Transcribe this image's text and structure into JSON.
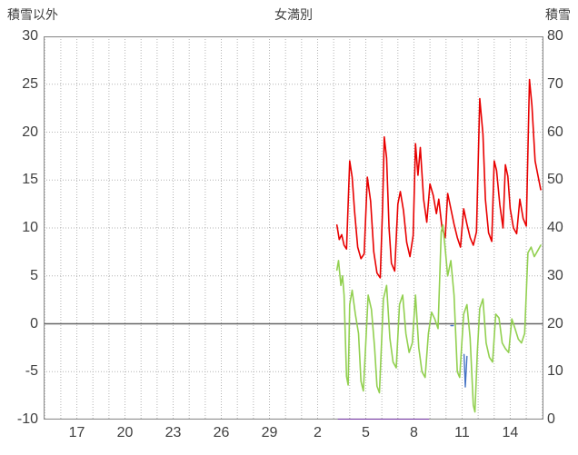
{
  "chart_data": {
    "type": "line",
    "title": "女満別",
    "grid": true,
    "legend": "none",
    "colors": {
      "grid": "#b3b3b3",
      "zero_line": "#666666",
      "border": "#8c8c8c",
      "text": "#3f3f3f",
      "red": "#e80000",
      "green": "#92d050",
      "blue": "#4472c4",
      "purple": "#7030a0"
    },
    "left_axis": {
      "label": "積雪以外",
      "min": -10,
      "max": 30,
      "ticks": [
        30,
        25,
        20,
        15,
        10,
        5,
        0,
        -5,
        -10
      ]
    },
    "right_axis": {
      "label": "積雪",
      "min": 0,
      "max": 80,
      "ticks": [
        80,
        70,
        60,
        50,
        40,
        30,
        20,
        10,
        0
      ]
    },
    "x_axis": {
      "domain": [
        14.93,
        46.07
      ],
      "minor_step": 1,
      "ticks": [
        {
          "label": "17",
          "pos": 17
        },
        {
          "label": "20",
          "pos": 20
        },
        {
          "label": "23",
          "pos": 23
        },
        {
          "label": "26",
          "pos": 26
        },
        {
          "label": "29",
          "pos": 29
        },
        {
          "label": "2",
          "pos": 32
        },
        {
          "label": "5",
          "pos": 35
        },
        {
          "label": "8",
          "pos": 38
        },
        {
          "label": "11",
          "pos": 41
        },
        {
          "label": "14",
          "pos": 44
        }
      ]
    },
    "series": [
      {
        "name": "series-red",
        "axis": "left",
        "color": "#e80000",
        "width": 1.6,
        "points": [
          [
            33.2,
            10.3
          ],
          [
            33.35,
            8.8
          ],
          [
            33.5,
            9.3
          ],
          [
            33.65,
            8.2
          ],
          [
            33.8,
            7.8
          ],
          [
            34.0,
            17.0
          ],
          [
            34.15,
            15.3
          ],
          [
            34.3,
            11.8
          ],
          [
            34.5,
            8.0
          ],
          [
            34.7,
            6.8
          ],
          [
            34.9,
            7.3
          ],
          [
            35.1,
            15.3
          ],
          [
            35.3,
            12.8
          ],
          [
            35.5,
            7.5
          ],
          [
            35.7,
            5.3
          ],
          [
            35.9,
            4.8
          ],
          [
            36.05,
            12.2
          ],
          [
            36.15,
            19.5
          ],
          [
            36.3,
            17.3
          ],
          [
            36.45,
            10.0
          ],
          [
            36.6,
            6.3
          ],
          [
            36.8,
            5.5
          ],
          [
            37.0,
            12.5
          ],
          [
            37.15,
            13.8
          ],
          [
            37.35,
            11.8
          ],
          [
            37.55,
            8.5
          ],
          [
            37.75,
            7.0
          ],
          [
            37.95,
            9.2
          ],
          [
            38.1,
            18.8
          ],
          [
            38.25,
            15.5
          ],
          [
            38.4,
            18.4
          ],
          [
            38.6,
            13.0
          ],
          [
            38.8,
            10.6
          ],
          [
            39.0,
            14.6
          ],
          [
            39.2,
            13.4
          ],
          [
            39.4,
            11.5
          ],
          [
            39.55,
            13.0
          ],
          [
            39.75,
            10.0
          ],
          [
            39.95,
            9.0
          ],
          [
            40.1,
            13.6
          ],
          [
            40.3,
            12.0
          ],
          [
            40.5,
            10.4
          ],
          [
            40.7,
            9.0
          ],
          [
            40.9,
            8.0
          ],
          [
            41.1,
            12.0
          ],
          [
            41.3,
            10.4
          ],
          [
            41.5,
            9.0
          ],
          [
            41.7,
            8.2
          ],
          [
            41.9,
            9.6
          ],
          [
            42.1,
            23.5
          ],
          [
            42.3,
            19.8
          ],
          [
            42.45,
            13.0
          ],
          [
            42.65,
            9.5
          ],
          [
            42.85,
            8.6
          ],
          [
            43.0,
            17.0
          ],
          [
            43.15,
            16.0
          ],
          [
            43.35,
            12.4
          ],
          [
            43.55,
            10.0
          ],
          [
            43.7,
            16.6
          ],
          [
            43.85,
            15.4
          ],
          [
            44.0,
            12.0
          ],
          [
            44.2,
            10.0
          ],
          [
            44.4,
            9.4
          ],
          [
            44.6,
            13.0
          ],
          [
            44.8,
            11.0
          ],
          [
            45.0,
            10.2
          ],
          [
            45.2,
            25.5
          ],
          [
            45.35,
            22.8
          ],
          [
            45.55,
            17.0
          ],
          [
            45.75,
            15.3
          ],
          [
            45.9,
            14.0
          ]
        ]
      },
      {
        "name": "series-green",
        "axis": "left",
        "color": "#92d050",
        "width": 1.6,
        "points": [
          [
            33.2,
            5.6
          ],
          [
            33.3,
            6.6
          ],
          [
            33.45,
            4.0
          ],
          [
            33.55,
            5.0
          ],
          [
            33.65,
            3.0
          ],
          [
            33.8,
            -5.5
          ],
          [
            33.9,
            -6.4
          ],
          [
            34.0,
            2.0
          ],
          [
            34.15,
            3.5
          ],
          [
            34.35,
            1.0
          ],
          [
            34.55,
            -1.0
          ],
          [
            34.7,
            -6.0
          ],
          [
            34.85,
            -7.0
          ],
          [
            35.0,
            -2.0
          ],
          [
            35.15,
            3.0
          ],
          [
            35.35,
            1.5
          ],
          [
            35.55,
            -2.5
          ],
          [
            35.7,
            -6.5
          ],
          [
            35.85,
            -7.2
          ],
          [
            36.1,
            2.6
          ],
          [
            36.3,
            4.0
          ],
          [
            36.5,
            -1.5
          ],
          [
            36.7,
            -4.0
          ],
          [
            36.9,
            -4.6
          ],
          [
            37.1,
            2.0
          ],
          [
            37.3,
            3.0
          ],
          [
            37.5,
            -1.0
          ],
          [
            37.7,
            -3.0
          ],
          [
            37.9,
            -2.0
          ],
          [
            38.1,
            3.0
          ],
          [
            38.3,
            -2.5
          ],
          [
            38.5,
            -5.0
          ],
          [
            38.7,
            -5.6
          ],
          [
            38.9,
            -1.0
          ],
          [
            39.1,
            1.2
          ],
          [
            39.3,
            0.5
          ],
          [
            39.5,
            -0.5
          ],
          [
            39.7,
            9.6
          ],
          [
            39.8,
            10.3
          ],
          [
            39.95,
            7.8
          ],
          [
            40.1,
            5.0
          ],
          [
            40.3,
            6.6
          ],
          [
            40.5,
            3.0
          ],
          [
            40.7,
            -5.0
          ],
          [
            40.85,
            -5.6
          ],
          [
            41.1,
            1.0
          ],
          [
            41.3,
            2.0
          ],
          [
            41.5,
            -1.5
          ],
          [
            41.7,
            -8.5
          ],
          [
            41.8,
            -9.2
          ],
          [
            41.95,
            -3.0
          ],
          [
            42.1,
            1.6
          ],
          [
            42.3,
            2.6
          ],
          [
            42.5,
            -2.0
          ],
          [
            42.7,
            -3.5
          ],
          [
            42.9,
            -4.0
          ],
          [
            43.1,
            1.0
          ],
          [
            43.3,
            0.6
          ],
          [
            43.5,
            -2.0
          ],
          [
            43.7,
            -2.6
          ],
          [
            43.9,
            -3.0
          ],
          [
            44.1,
            0.5
          ],
          [
            44.3,
            -0.5
          ],
          [
            44.5,
            -1.6
          ],
          [
            44.7,
            -2.0
          ],
          [
            44.9,
            -1.0
          ],
          [
            45.1,
            7.4
          ],
          [
            45.3,
            8.0
          ],
          [
            45.5,
            7.0
          ],
          [
            45.7,
            7.6
          ],
          [
            45.9,
            8.2
          ]
        ]
      },
      {
        "name": "series-blue-spike",
        "axis": "left",
        "color": "#4472c4",
        "width": 1.4,
        "points": [
          [
            41.12,
            -3.2
          ],
          [
            41.2,
            -6.6
          ],
          [
            41.3,
            -3.4
          ]
        ]
      },
      {
        "name": "series-blue-dot",
        "axis": "left",
        "color": "#4472c4",
        "width": 1.4,
        "points": [
          [
            40.3,
            -0.2
          ],
          [
            40.45,
            -0.2
          ]
        ]
      },
      {
        "name": "series-purple",
        "axis": "right",
        "color": "#7030a0",
        "width": 2,
        "points": [
          [
            33.3,
            0
          ],
          [
            38.9,
            0
          ]
        ]
      }
    ]
  }
}
